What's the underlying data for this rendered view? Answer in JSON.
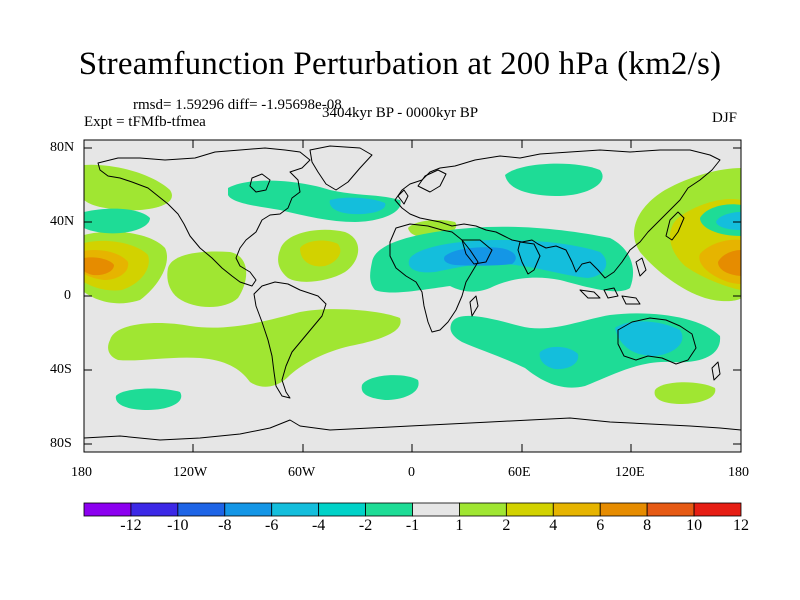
{
  "title": "Streamfunction Perturbation at 200 hPa (km2/s)",
  "stats": "rmsd= 1.59296 diff= -1.95698e-08",
  "experiment": "Expt = tFMfb-tfmea",
  "period": "3404kyr BP - 0000kyr BP",
  "season": "DJF",
  "axes": {
    "lat_labels": [
      "80N",
      "40N",
      "0",
      "40S",
      "80S"
    ],
    "lon_labels": [
      "180",
      "120W",
      "60W",
      "0",
      "60E",
      "120E",
      "180"
    ]
  },
  "colorbar": {
    "colors": [
      "#8c00f0",
      "#3c28e6",
      "#1e64e6",
      "#1496e6",
      "#14bedc",
      "#00d2c8",
      "#1edc96",
      "#e6e6e6",
      "#a0e632",
      "#d2d200",
      "#e6b400",
      "#e68c00",
      "#e65a14",
      "#e61e14"
    ],
    "labels": [
      "-12",
      "-10",
      "-8",
      "-6",
      "-4",
      "-2",
      "-1",
      "1",
      "2",
      "4",
      "6",
      "8",
      "10",
      "12"
    ]
  },
  "fill_colors": {
    "background": "#e6e6e6",
    "pos_weak": "#a0e632",
    "pos_mid": "#d2d200",
    "pos_strong": "#e6b400",
    "pos_max": "#e68c00",
    "neg_weak": "#1edc96",
    "neg_mid": "#14bedc",
    "neg_strong": "#1496e6"
  }
}
